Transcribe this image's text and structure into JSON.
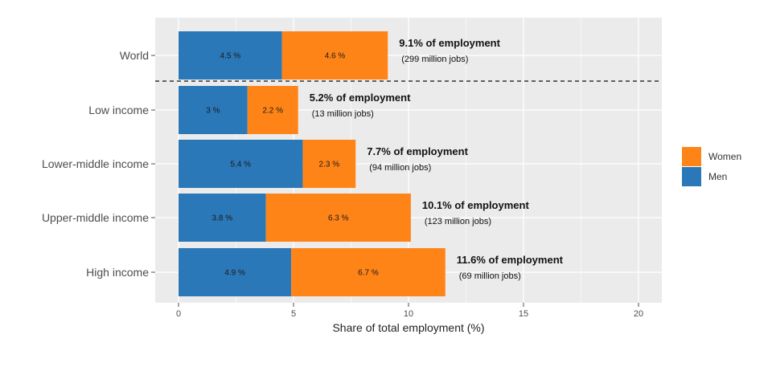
{
  "chart_data": {
    "type": "bar",
    "orientation": "horizontal",
    "stacked": true,
    "categories": [
      "World",
      "Low income",
      "Lower-middle income",
      "Upper-middle income",
      "High income"
    ],
    "series": [
      {
        "name": "Men",
        "values": [
          4.5,
          3.0,
          5.4,
          3.8,
          4.9
        ],
        "labels": [
          "4.5 %",
          "3 %",
          "5.4 %",
          "3.8 %",
          "4.9 %"
        ],
        "color": "#2b78b8"
      },
      {
        "name": "Women",
        "values": [
          4.6,
          2.2,
          2.3,
          6.3,
          6.7
        ],
        "labels": [
          "4.6 %",
          "2.2 %",
          "2.3 %",
          "6.3 %",
          "6.7 %"
        ],
        "color": "#ff8418"
      }
    ],
    "annotations": [
      {
        "main": "9.1% of employment",
        "sub": "(299 million jobs)"
      },
      {
        "main": "5.2% of employment",
        "sub": "(13 million jobs)"
      },
      {
        "main": "7.7% of employment",
        "sub": "(94 million jobs)"
      },
      {
        "main": "10.1% of employment",
        "sub": "(123 million jobs)"
      },
      {
        "main": "11.6% of employment",
        "sub": "(69 million jobs)"
      }
    ],
    "xlabel": "Share of total employment (%)",
    "ylabel": "",
    "xlim": [
      0,
      21
    ],
    "xticks": [
      0,
      5,
      10,
      15,
      20
    ],
    "xtick_labels": [
      "0",
      "5",
      "10",
      "15",
      "20"
    ],
    "grid": true,
    "panel_background": "#ebebeb",
    "separator": "dashed line between World and income groups",
    "legend": {
      "position": "right",
      "entries": [
        "Women",
        "Men"
      ]
    }
  }
}
